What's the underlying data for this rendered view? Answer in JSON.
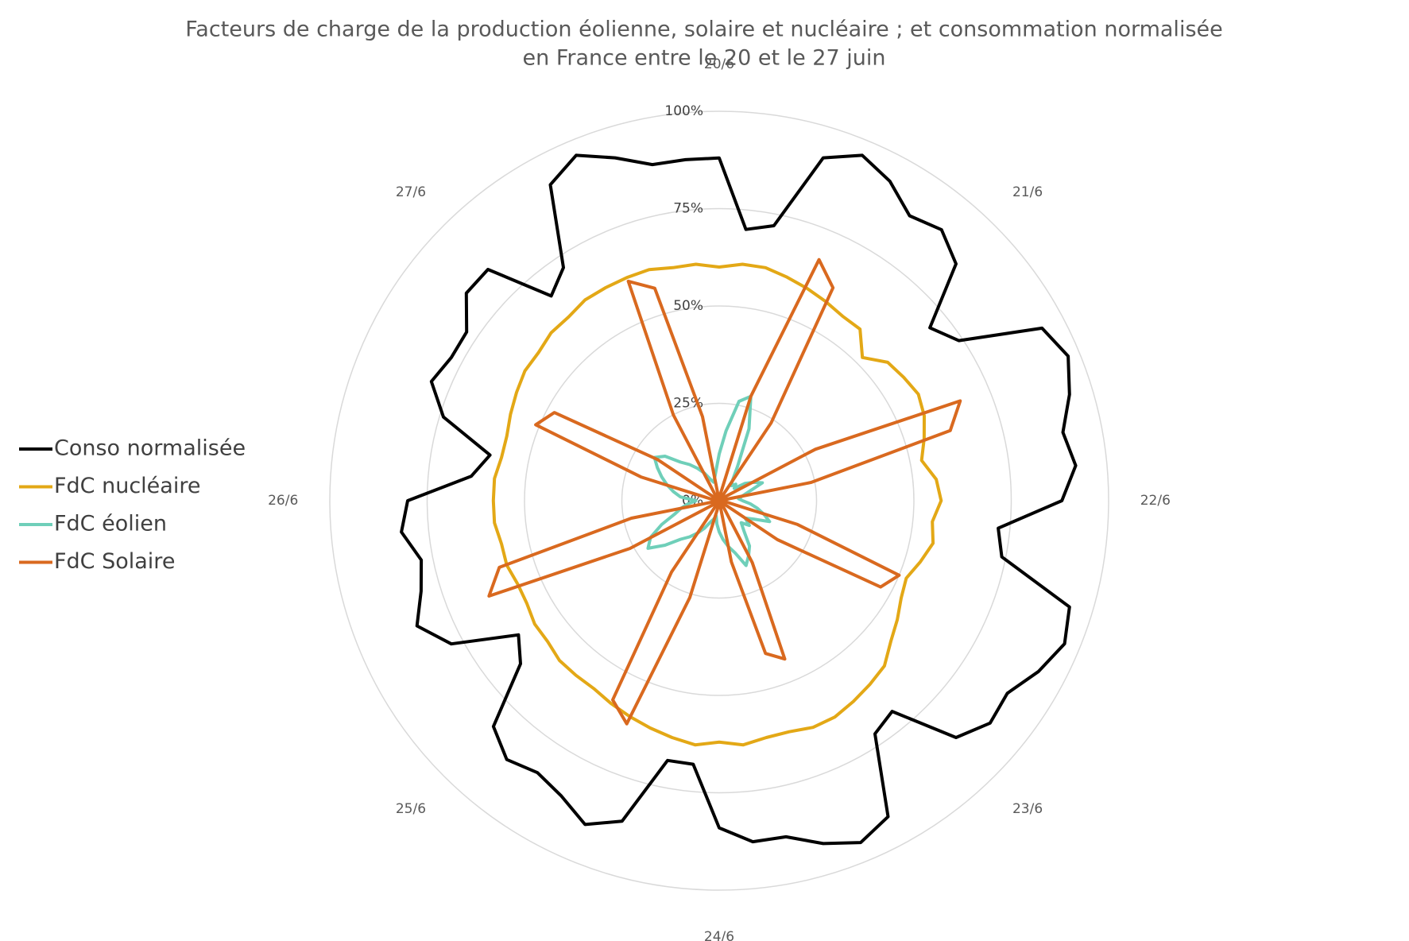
{
  "chart_data": {
    "type": "radar",
    "title": "Facteurs de charge de la production éolienne, solaire et nucléaire ; et consommation normalisée",
    "subtitle": "en France entre le 20 et le 27 juin",
    "categories": [
      "20/6",
      null,
      null,
      null,
      null,
      null,
      null,
      null,
      "21/6",
      null,
      null,
      null,
      null,
      null,
      null,
      null,
      "22/6",
      null,
      null,
      null,
      null,
      null,
      null,
      null,
      "23/6",
      null,
      null,
      null,
      null,
      null,
      null,
      null,
      "24/6",
      null,
      null,
      null,
      null,
      null,
      null,
      null,
      "25/6",
      null,
      null,
      null,
      null,
      null,
      null,
      null,
      "26/6",
      null,
      null,
      null,
      null,
      null,
      null,
      null,
      "27/6",
      null,
      null,
      null,
      null,
      null,
      null,
      null
    ],
    "rlim": [
      0,
      100
    ],
    "rticks": [
      {
        "value": 0,
        "label": "0%"
      },
      {
        "value": 25,
        "label": "25%"
      },
      {
        "value": 50,
        "label": "50%"
      },
      {
        "value": 75,
        "label": "75%"
      },
      {
        "value": 100,
        "label": "100%"
      }
    ],
    "grid": true,
    "legend": "left",
    "series": [
      {
        "name": "Conso normalisée",
        "color": "#000000",
        "values": [
          88,
          70,
          72,
          92,
          96,
          93,
          88,
          90,
          86,
          70,
          74,
          94,
          97,
          94,
          90,
          92,
          88,
          72,
          74,
          94,
          96,
          93,
          89,
          90,
          86,
          70,
          72,
          92,
          95,
          92,
          88,
          88,
          84,
          68,
          68,
          86,
          90,
          86,
          84,
          86,
          82,
          66,
          62,
          78,
          84,
          80,
          78,
          82,
          80,
          64,
          60,
          74,
          80,
          78,
          78,
          84,
          84,
          68,
          72,
          92,
          96,
          92,
          88,
          88
        ]
      },
      {
        "name": "FdC nucléaire",
        "color": "#e3a816",
        "values": [
          60,
          61,
          61,
          60,
          59,
          58,
          57,
          57,
          52,
          56,
          57,
          58,
          57,
          55,
          53,
          56,
          57,
          55,
          56,
          54,
          52,
          53,
          55,
          57,
          60,
          61,
          62,
          63,
          63,
          62,
          62,
          63,
          62,
          63,
          62,
          61,
          60,
          59,
          58,
          58,
          58,
          57,
          57,
          56,
          56,
          57,
          57,
          58,
          58,
          58,
          57,
          57,
          58,
          59,
          60,
          60,
          61,
          61,
          62,
          62,
          62,
          62,
          61,
          61
        ]
      },
      {
        "name": "FdC éolien",
        "color": "#6fcfb9",
        "values": [
          12,
          18,
          26,
          28,
          20,
          10,
          6,
          5,
          6,
          5,
          8,
          10,
          12,
          8,
          6,
          5,
          6,
          8,
          10,
          12,
          14,
          10,
          8,
          10,
          8,
          10,
          14,
          16,
          18,
          14,
          12,
          10,
          8,
          6,
          4,
          5,
          6,
          8,
          10,
          12,
          14,
          18,
          22,
          20,
          16,
          12,
          10,
          8,
          6,
          10,
          12,
          14,
          16,
          18,
          20,
          18,
          14,
          12,
          10,
          8,
          6,
          5,
          6,
          8
        ]
      },
      {
        "name": "FdC Solaire",
        "color": "#d9691f",
        "values": [
          0,
          0,
          2,
          28,
          67,
          62,
          24,
          0,
          0,
          0,
          2,
          28,
          67,
          62,
          24,
          0,
          0,
          0,
          2,
          21,
          50,
          47,
          18,
          0,
          0,
          0,
          2,
          18,
          44,
          41,
          16,
          0,
          0,
          0,
          2,
          26,
          62,
          58,
          22,
          0,
          0,
          0,
          2,
          26,
          64,
          59,
          23,
          0,
          0,
          0,
          2,
          21,
          51,
          48,
          19,
          0,
          0,
          0,
          2,
          25,
          61,
          57,
          22,
          0
        ]
      }
    ]
  }
}
